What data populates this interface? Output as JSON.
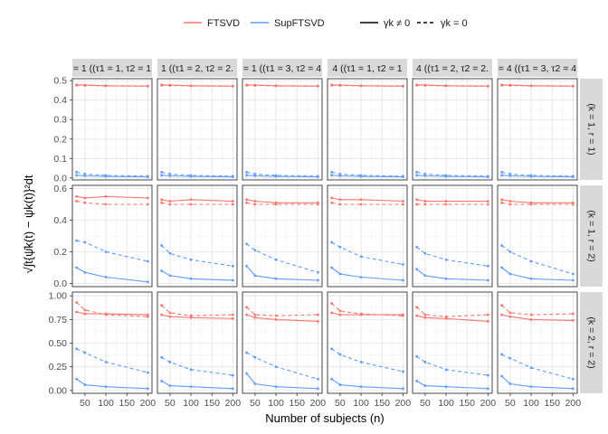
{
  "chart_data": {
    "type": "line",
    "xlabel": "Number of subjects (n)",
    "ylabel": "√∫t{ψ̂k(t) − ψk(t)}²dt",
    "x": [
      30,
      50,
      100,
      200
    ],
    "x_ticks": [
      50,
      100,
      150,
      200
    ],
    "xlim": [
      20,
      210
    ],
    "legend": {
      "position": "top",
      "methods": [
        {
          "name": "FTSVD",
          "color": "#F8766D"
        },
        {
          "name": "SupFTSVD",
          "color": "#619CFF"
        }
      ],
      "linetypes": [
        {
          "name": "γk ≠ 0",
          "dash": "solid"
        },
        {
          "name": "γk = 0",
          "dash": "dashed"
        }
      ]
    },
    "col_strips": [
      "= 1 ((τ1 = 1, τ2 = 1",
      "1 ((τ1 = 2, τ2 = 2.",
      "= 1 ((τ1 = 3, τ2 = 4",
      "4 ((τ1 = 1, τ2 = 1",
      "4 ((τ1 = 2, τ2 = 2.",
      "= 4 ((τ1 = 3, τ2 = 4"
    ],
    "row_strips": [
      "(k = 1, r = 1)",
      "(k = 1, r = 2)",
      "(k = 2, r = 2)"
    ],
    "rows": [
      {
        "ylim": [
          -0.01,
          0.51
        ],
        "y_ticks": [
          0.0,
          0.1,
          0.2,
          0.3,
          0.4,
          0.5
        ],
        "y_tick_labels": [
          "0.0",
          "0.1",
          "0.2",
          "0.3",
          "0.4",
          "0.5"
        ],
        "panels": [
          {
            "FTSVD_solid": [
              0.478,
              0.477,
              0.474,
              0.472
            ],
            "FTSVD_dashed": [
              0.476,
              0.475,
              0.473,
              0.471
            ],
            "SupFTSVD_solid": [
              0.014,
              0.011,
              0.008,
              0.006
            ],
            "SupFTSVD_dashed": [
              0.03,
              0.02,
              0.013,
              0.009
            ]
          },
          {
            "FTSVD_solid": [
              0.478,
              0.477,
              0.474,
              0.472
            ],
            "FTSVD_dashed": [
              0.476,
              0.475,
              0.473,
              0.471
            ],
            "SupFTSVD_solid": [
              0.014,
              0.011,
              0.008,
              0.006
            ],
            "SupFTSVD_dashed": [
              0.03,
              0.02,
              0.013,
              0.009
            ]
          },
          {
            "FTSVD_solid": [
              0.478,
              0.477,
              0.474,
              0.472
            ],
            "FTSVD_dashed": [
              0.476,
              0.475,
              0.473,
              0.471
            ],
            "SupFTSVD_solid": [
              0.014,
              0.011,
              0.008,
              0.006
            ],
            "SupFTSVD_dashed": [
              0.03,
              0.02,
              0.013,
              0.009
            ]
          },
          {
            "FTSVD_solid": [
              0.478,
              0.477,
              0.474,
              0.472
            ],
            "FTSVD_dashed": [
              0.476,
              0.475,
              0.473,
              0.471
            ],
            "SupFTSVD_solid": [
              0.014,
              0.011,
              0.008,
              0.006
            ],
            "SupFTSVD_dashed": [
              0.03,
              0.02,
              0.013,
              0.009
            ]
          },
          {
            "FTSVD_solid": [
              0.478,
              0.477,
              0.474,
              0.472
            ],
            "FTSVD_dashed": [
              0.476,
              0.475,
              0.473,
              0.471
            ],
            "SupFTSVD_solid": [
              0.014,
              0.011,
              0.008,
              0.006
            ],
            "SupFTSVD_dashed": [
              0.03,
              0.02,
              0.013,
              0.009
            ]
          },
          {
            "FTSVD_solid": [
              0.478,
              0.477,
              0.474,
              0.472
            ],
            "FTSVD_dashed": [
              0.476,
              0.475,
              0.473,
              0.471
            ],
            "SupFTSVD_solid": [
              0.014,
              0.011,
              0.008,
              0.006
            ],
            "SupFTSVD_dashed": [
              0.03,
              0.02,
              0.013,
              0.009
            ]
          }
        ]
      },
      {
        "ylim": [
          -0.02,
          0.62
        ],
        "y_ticks": [
          0.0,
          0.2,
          0.4,
          0.6
        ],
        "y_tick_labels": [
          "0.0",
          "0.2",
          "0.4",
          "0.6"
        ],
        "panels": [
          {
            "FTSVD_solid": [
              0.55,
              0.54,
              0.55,
              0.54
            ],
            "FTSVD_dashed": [
              0.52,
              0.51,
              0.5,
              0.5
            ],
            "SupFTSVD_solid": [
              0.1,
              0.07,
              0.04,
              0.01
            ],
            "SupFTSVD_dashed": [
              0.27,
              0.26,
              0.2,
              0.14
            ]
          },
          {
            "FTSVD_solid": [
              0.53,
              0.52,
              0.53,
              0.52
            ],
            "FTSVD_dashed": [
              0.51,
              0.5,
              0.5,
              0.5
            ],
            "SupFTSVD_solid": [
              0.08,
              0.05,
              0.03,
              0.02
            ],
            "SupFTSVD_dashed": [
              0.24,
              0.19,
              0.15,
              0.11
            ]
          },
          {
            "FTSVD_solid": [
              0.53,
              0.52,
              0.51,
              0.51
            ],
            "FTSVD_dashed": [
              0.51,
              0.5,
              0.5,
              0.5
            ],
            "SupFTSVD_solid": [
              0.11,
              0.05,
              0.03,
              0.02
            ],
            "SupFTSVD_dashed": [
              0.25,
              0.21,
              0.15,
              0.07
            ]
          },
          {
            "FTSVD_solid": [
              0.54,
              0.53,
              0.53,
              0.52
            ],
            "FTSVD_dashed": [
              0.51,
              0.5,
              0.5,
              0.5
            ],
            "SupFTSVD_solid": [
              0.1,
              0.06,
              0.04,
              0.02
            ],
            "SupFTSVD_dashed": [
              0.26,
              0.23,
              0.17,
              0.12
            ]
          },
          {
            "FTSVD_solid": [
              0.53,
              0.52,
              0.52,
              0.52
            ],
            "FTSVD_dashed": [
              0.5,
              0.5,
              0.5,
              0.5
            ],
            "SupFTSVD_solid": [
              0.09,
              0.05,
              0.03,
              0.02
            ],
            "SupFTSVD_dashed": [
              0.23,
              0.19,
              0.15,
              0.11
            ]
          },
          {
            "FTSVD_solid": [
              0.53,
              0.52,
              0.51,
              0.51
            ],
            "FTSVD_dashed": [
              0.51,
              0.5,
              0.5,
              0.5
            ],
            "SupFTSVD_solid": [
              0.1,
              0.06,
              0.03,
              0.02
            ],
            "SupFTSVD_dashed": [
              0.24,
              0.2,
              0.14,
              0.06
            ]
          }
        ]
      },
      {
        "ylim": [
          -0.03,
          1.04
        ],
        "y_ticks": [
          0.0,
          0.25,
          0.5,
          0.75,
          1.0
        ],
        "y_tick_labels": [
          "0.00",
          "0.25",
          "0.50",
          "0.75",
          "1.00"
        ],
        "panels": [
          {
            "FTSVD_solid": [
              0.83,
              0.81,
              0.81,
              0.8
            ],
            "FTSVD_dashed": [
              0.93,
              0.85,
              0.8,
              0.78
            ],
            "SupFTSVD_solid": [
              0.12,
              0.06,
              0.04,
              0.02
            ],
            "SupFTSVD_dashed": [
              0.44,
              0.4,
              0.3,
              0.19
            ]
          },
          {
            "FTSVD_solid": [
              0.8,
              0.78,
              0.77,
              0.76
            ],
            "FTSVD_dashed": [
              0.9,
              0.82,
              0.79,
              0.8
            ],
            "SupFTSVD_solid": [
              0.1,
              0.05,
              0.04,
              0.02
            ],
            "SupFTSVD_dashed": [
              0.35,
              0.3,
              0.22,
              0.16
            ]
          },
          {
            "FTSVD_solid": [
              0.8,
              0.77,
              0.75,
              0.73
            ],
            "FTSVD_dashed": [
              0.88,
              0.8,
              0.79,
              0.8
            ],
            "SupFTSVD_solid": [
              0.18,
              0.07,
              0.04,
              0.02
            ],
            "SupFTSVD_dashed": [
              0.4,
              0.35,
              0.25,
              0.12
            ]
          },
          {
            "FTSVD_solid": [
              0.82,
              0.8,
              0.8,
              0.8
            ],
            "FTSVD_dashed": [
              0.92,
              0.84,
              0.81,
              0.79
            ],
            "SupFTSVD_solid": [
              0.12,
              0.06,
              0.04,
              0.02
            ],
            "SupFTSVD_dashed": [
              0.44,
              0.38,
              0.3,
              0.2
            ]
          },
          {
            "FTSVD_solid": [
              0.79,
              0.77,
              0.76,
              0.73
            ],
            "FTSVD_dashed": [
              0.88,
              0.8,
              0.78,
              0.8
            ],
            "SupFTSVD_solid": [
              0.1,
              0.05,
              0.04,
              0.02
            ],
            "SupFTSVD_dashed": [
              0.36,
              0.3,
              0.22,
              0.16
            ]
          },
          {
            "FTSVD_solid": [
              0.8,
              0.78,
              0.75,
              0.74
            ],
            "FTSVD_dashed": [
              0.9,
              0.82,
              0.8,
              0.81
            ],
            "SupFTSVD_solid": [
              0.15,
              0.07,
              0.04,
              0.02
            ],
            "SupFTSVD_dashed": [
              0.38,
              0.34,
              0.24,
              0.12
            ]
          }
        ]
      }
    ],
    "grid": true
  }
}
